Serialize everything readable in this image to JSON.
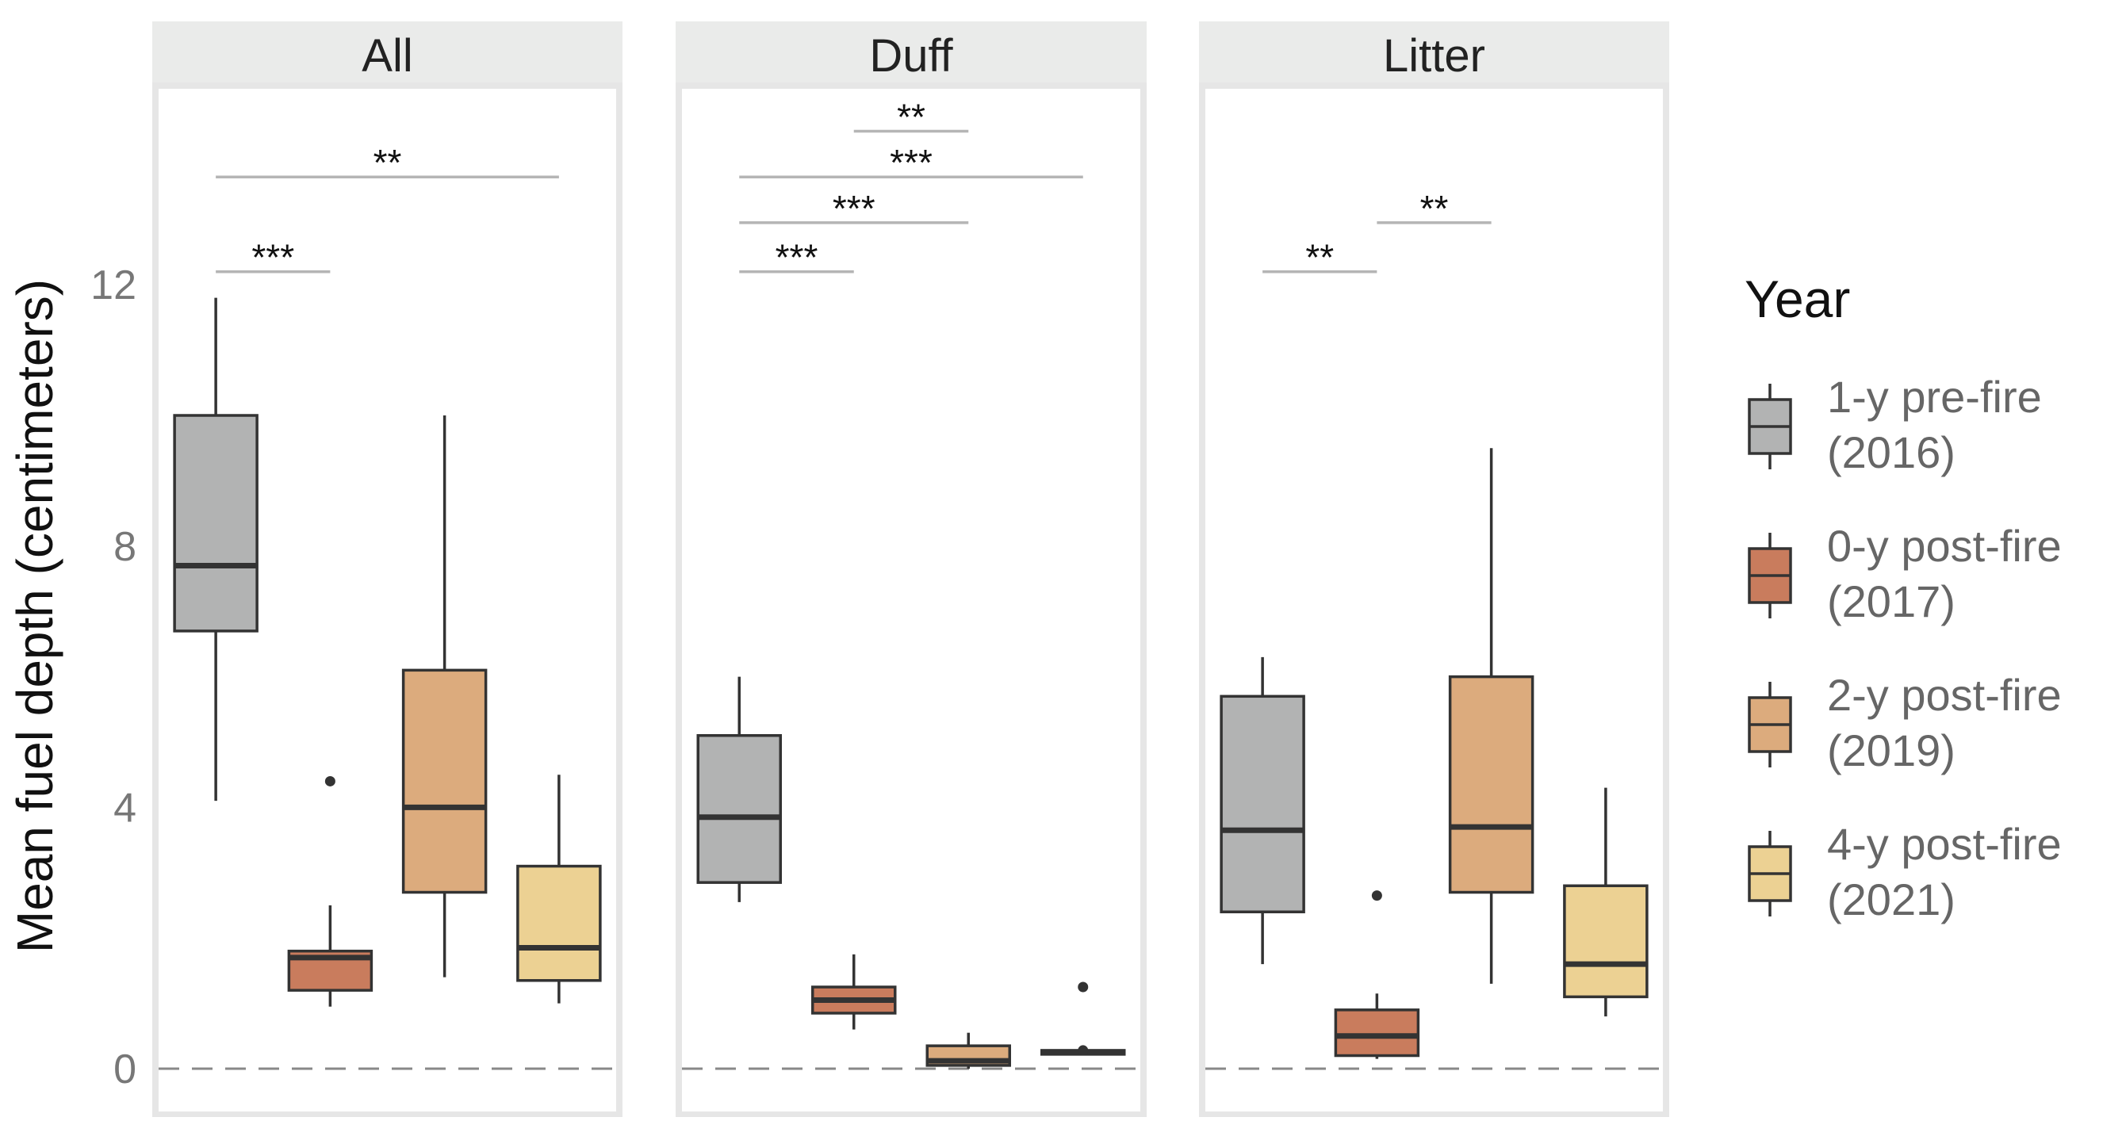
{
  "chart_data": {
    "type": "box",
    "ylabel": "Mean fuel depth (centimeters)",
    "y_ticks": [
      0,
      4,
      8,
      12
    ],
    "ylim": [
      -0.6,
      16.4
    ],
    "reference_line": {
      "y": 0,
      "style": "dashed"
    },
    "legend": {
      "title": "Year",
      "placement": "right",
      "items": [
        {
          "line1": "1-y pre-fire",
          "line2": "(2016)",
          "color": "#b2b3b3"
        },
        {
          "line1": "0-y post-fire",
          "line2": "(2017)",
          "color": "#c97c5d"
        },
        {
          "line1": "2-y post-fire",
          "line2": "(2019)",
          "color": "#dcab7d"
        },
        {
          "line1": "4-y post-fire",
          "line2": "(2021)",
          "color": "#ecd193"
        }
      ]
    },
    "panels": [
      {
        "title": "All",
        "boxes": [
          {
            "group": 0,
            "whisker_low": 4.1,
            "q1": 6.7,
            "median": 7.7,
            "q3": 10.0,
            "whisker_high": 11.8,
            "outliers": []
          },
          {
            "group": 1,
            "whisker_low": 0.95,
            "q1": 1.2,
            "median": 1.7,
            "q3": 1.8,
            "whisker_high": 2.5,
            "outliers": [
              4.4
            ]
          },
          {
            "group": 2,
            "whisker_low": 1.4,
            "q1": 2.7,
            "median": 4.0,
            "q3": 6.1,
            "whisker_high": 10.0,
            "outliers": []
          },
          {
            "group": 3,
            "whisker_low": 1.0,
            "q1": 1.35,
            "median": 1.85,
            "q3": 3.1,
            "whisker_high": 4.5,
            "outliers": []
          }
        ],
        "significance": [
          {
            "from": 0,
            "to": 1,
            "label": "***",
            "y": 12.2
          },
          {
            "from": 0,
            "to": 3,
            "label": "**",
            "y": 13.65
          }
        ]
      },
      {
        "title": "Duff",
        "boxes": [
          {
            "group": 0,
            "whisker_low": 2.55,
            "q1": 2.85,
            "median": 3.85,
            "q3": 5.1,
            "whisker_high": 6.0,
            "outliers": []
          },
          {
            "group": 1,
            "whisker_low": 0.6,
            "q1": 0.85,
            "median": 1.05,
            "q3": 1.25,
            "whisker_high": 1.75,
            "outliers": []
          },
          {
            "group": 2,
            "whisker_low": 0.0,
            "q1": 0.05,
            "median": 0.12,
            "q3": 0.35,
            "whisker_high": 0.55,
            "outliers": []
          },
          {
            "group": 3,
            "whisker_low": 0.22,
            "q1": 0.22,
            "median": 0.25,
            "q3": 0.28,
            "whisker_high": 0.28,
            "outliers": [
              1.25,
              0.28
            ]
          }
        ],
        "significance": [
          {
            "from": 0,
            "to": 1,
            "label": "***",
            "y": 12.2
          },
          {
            "from": 0,
            "to": 2,
            "label": "***",
            "y": 12.95
          },
          {
            "from": 0,
            "to": 3,
            "label": "***",
            "y": 13.65
          },
          {
            "from": 1,
            "to": 2,
            "label": "**",
            "y": 14.35
          }
        ]
      },
      {
        "title": "Litter",
        "boxes": [
          {
            "group": 0,
            "whisker_low": 1.6,
            "q1": 2.4,
            "median": 3.65,
            "q3": 5.7,
            "whisker_high": 6.3,
            "outliers": []
          },
          {
            "group": 1,
            "whisker_low": 0.15,
            "q1": 0.2,
            "median": 0.5,
            "q3": 0.9,
            "whisker_high": 1.15,
            "outliers": [
              2.65
            ]
          },
          {
            "group": 2,
            "whisker_low": 1.3,
            "q1": 2.7,
            "median": 3.7,
            "q3": 6.0,
            "whisker_high": 9.5,
            "outliers": []
          },
          {
            "group": 3,
            "whisker_low": 0.8,
            "q1": 1.1,
            "median": 1.6,
            "q3": 2.8,
            "whisker_high": 4.3,
            "outliers": []
          }
        ],
        "significance": [
          {
            "from": 0,
            "to": 1,
            "label": "**",
            "y": 12.2
          },
          {
            "from": 1,
            "to": 2,
            "label": "**",
            "y": 12.95
          }
        ]
      }
    ]
  }
}
